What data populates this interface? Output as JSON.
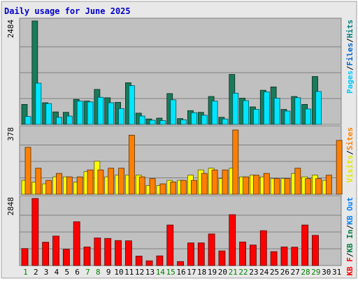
{
  "chart_data": {
    "type": "bar",
    "title": "Daily usage for June 2025",
    "categories": [
      "1",
      "2",
      "3",
      "4",
      "5",
      "6",
      "7",
      "8",
      "9",
      "10",
      "11",
      "12",
      "13",
      "14",
      "15",
      "16",
      "17",
      "18",
      "19",
      "20",
      "21",
      "22",
      "23",
      "24",
      "25",
      "26",
      "27",
      "28",
      "29",
      "30",
      "31"
    ],
    "weekend_days": [
      "1",
      "7",
      "8",
      "14",
      "15",
      "21",
      "22",
      "28",
      "29"
    ],
    "panels": [
      {
        "id": "hits-files-pages",
        "max_label": "2484",
        "ymax": 2484,
        "series": [
          {
            "name": "Hits",
            "color": "#1a7a5a",
            "values": [
              480,
              2484,
              520,
              300,
              290,
              600,
              560,
              840,
              640,
              530,
              1000,
              270,
              130,
              150,
              740,
              140,
              330,
              290,
              670,
              170,
              1200,
              630,
              420,
              820,
              900,
              360,
              670,
              480,
              1150,
              0,
              0
            ]
          },
          {
            "name": "Files",
            "color": "#00e5ff",
            "values": [
              190,
              990,
              500,
              170,
              200,
              560,
              540,
              650,
              520,
              380,
              930,
              200,
              100,
              90,
              590,
              110,
              280,
              220,
              560,
              130,
              750,
              570,
              360,
              780,
              630,
              320,
              640,
              370,
              790,
              0,
              0
            ]
          },
          {
            "name": "Pages",
            "color": "#00c8ff",
            "values": []
          }
        ]
      },
      {
        "id": "visits-sites",
        "max_label": "378",
        "ymax": 378,
        "series": [
          {
            "name": "Visits",
            "color": "#ffff00",
            "values": [
              80,
              70,
              60,
              100,
              100,
              70,
              130,
              190,
              100,
              110,
              110,
              110,
              50,
              50,
              80,
              80,
              110,
              140,
              150,
              90,
              150,
              100,
              110,
              100,
              90,
              90,
              120,
              100,
              110,
              80,
              0
            ]
          },
          {
            "name": "Sites",
            "color": "#ff7f00",
            "values": [
              270,
              150,
              80,
              120,
              100,
              100,
              140,
              140,
              150,
              150,
              340,
              100,
              90,
              60,
              70,
              80,
              80,
              120,
              140,
              140,
              370,
              100,
              110,
              120,
              90,
              90,
              150,
              90,
              90,
              110,
              310
            ]
          }
        ]
      },
      {
        "id": "kbf-kbin-kbout",
        "max_label": "2848",
        "ymax": 2848,
        "series": [
          {
            "name": "KB F",
            "color": "#ff0000",
            "values": [
              720,
              2848,
              990,
              1250,
              690,
              1860,
              790,
              1170,
              1150,
              1060,
              1050,
              400,
              200,
              410,
              1720,
              170,
              960,
              960,
              1340,
              620,
              2160,
              1000,
              870,
              1480,
              590,
              790,
              780,
              1720,
              1280,
              0,
              0
            ]
          },
          {
            "name": "KB In",
            "color": "#008040",
            "values": []
          },
          {
            "name": "KB Out",
            "color": "#00a0ff",
            "values": []
          }
        ]
      }
    ],
    "right_legends": [
      [
        {
          "text": "Pages",
          "color": "#00c8ff"
        },
        {
          "text": "/",
          "color": "#000000"
        },
        {
          "text": "Files",
          "color": "#0066cc"
        },
        {
          "text": "/",
          "color": "#000000"
        },
        {
          "text": "Hits",
          "color": "#008080"
        }
      ],
      [
        {
          "text": "Visits",
          "color": "#e6e600"
        },
        {
          "text": "/",
          "color": "#000000"
        },
        {
          "text": "Sites",
          "color": "#ff8000"
        }
      ],
      [
        {
          "text": "KB F",
          "color": "#ff0000"
        },
        {
          "text": "/",
          "color": "#000000"
        },
        {
          "text": "KB In",
          "color": "#008040"
        },
        {
          "text": "/",
          "color": "#000000"
        },
        {
          "text": "KB Out",
          "color": "#0080ff"
        }
      ]
    ],
    "grid": true,
    "legend_position": "right",
    "colors": {
      "background": "#ffffff",
      "frame": "#e6e6e6",
      "panel": "#c0c0c0",
      "gridline": "#808080",
      "title": "#0000cc",
      "tick_weekday": "#000000",
      "tick_weekend": "#008000"
    }
  }
}
